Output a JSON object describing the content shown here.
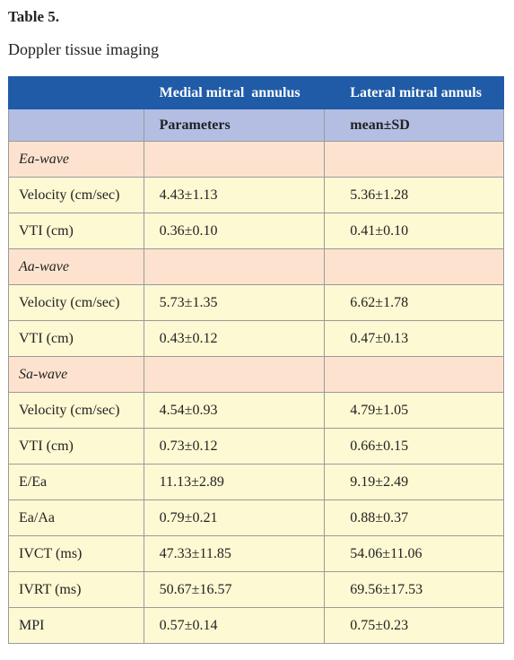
{
  "title": "Table 5.",
  "caption": "Doppler tissue imaging",
  "table": {
    "header": [
      [
        "Medial mitral  annulus",
        "Lateral mitral annuls"
      ],
      [
        "Parameters",
        "mean±SD"
      ]
    ],
    "rows": [
      [
        "Ea-wave"
      ],
      [
        "Velocity (cm/sec)",
        "4.43±1.13",
        "5.36±1.28"
      ],
      [
        "VTI (cm)",
        "0.36±0.10",
        "0.41±0.10"
      ],
      [
        "Aa-wave"
      ],
      [
        "Velocity (cm/sec)",
        "5.73±1.35",
        "6.62±1.78"
      ],
      [
        "VTI (cm)",
        "0.43±0.12",
        "0.47±0.13"
      ],
      [
        "Sa-wave"
      ],
      [
        "Velocity (cm/sec)",
        "4.54±0.93",
        "4.79±1.05"
      ],
      [
        "VTI (cm)",
        "0.73±0.12",
        "0.66±0.15"
      ],
      [
        "E/Ea",
        "11.13±2.89",
        "9.19±2.49"
      ],
      [
        "Ea/Aa",
        "0.79±0.21",
        "0.88±0.37"
      ],
      [
        "IVCT (ms)",
        "47.33±11.85",
        "54.06±11.06"
      ],
      [
        "IVRT (ms)",
        "50.67±16.57",
        "69.56±17.53"
      ],
      [
        "MPI",
        "0.57±0.14",
        "0.75±0.23"
      ]
    ]
  }
}
